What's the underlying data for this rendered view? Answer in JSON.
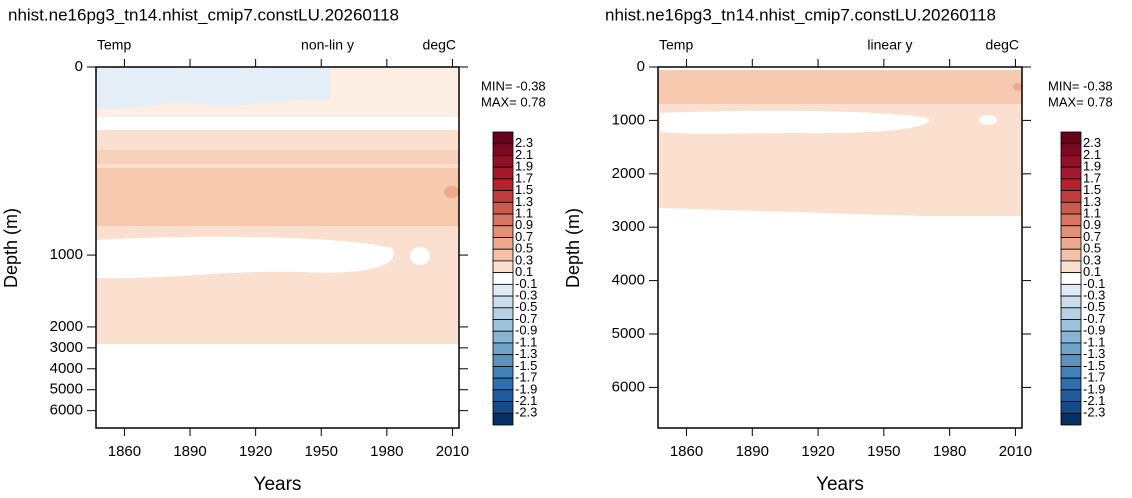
{
  "chart_data": [
    {
      "type": "contour",
      "title": "nhist.ne16pg3_tn14.nhist_cmip7.constLU.20260118",
      "left_label": "Temp",
      "center_label": "non-lin y",
      "right_label": "degC",
      "min_label": "MIN= -0.38",
      "max_label": "MAX=  0.78",
      "xlabel": "Years",
      "ylabel": "Depth (m)",
      "yscale": "nonlinear",
      "xlim": [
        1847,
        2013
      ],
      "xticks": [
        1860,
        1890,
        1920,
        1950,
        1980,
        2010
      ],
      "ylim": [
        6800,
        0
      ],
      "yticks": [
        0,
        1000,
        2000,
        3000,
        4000,
        5000,
        6000
      ],
      "colorbar_labels": [
        "2.3",
        "2.1",
        "1.9",
        "1.7",
        "1.5",
        "1.3",
        "1.1",
        "0.9",
        "0.7",
        "0.5",
        "0.3",
        "0.1",
        "-0.1",
        "-0.3",
        "-0.5",
        "-0.7",
        "-0.9",
        "-1.1",
        "-1.3",
        "-1.5",
        "-1.7",
        "-1.9",
        "-2.1",
        "-2.3"
      ],
      "colorbar_colors": [
        "#67001f",
        "#7a0a22",
        "#8e1326",
        "#a2192b",
        "#b2232f",
        "#c03d3e",
        "#cc5a4f",
        "#d87561",
        "#e39077",
        "#eeaa8d",
        "#f5c2a7",
        "#fbe0d0",
        "#ffffff",
        "#dfebf4",
        "#c9ddec",
        "#b3d0e4",
        "#9ec3dc",
        "#89b5d4",
        "#6fa4cb",
        "#5893c2",
        "#4281b8",
        "#2f6fac",
        "#215c9c",
        "#154a89",
        "#053061"
      ]
    },
    {
      "type": "contour",
      "title": "nhist.ne16pg3_tn14.nhist_cmip7.constLU.20260118",
      "left_label": "Temp",
      "center_label": "linear y",
      "right_label": "degC",
      "min_label": "MIN= -0.38",
      "max_label": "MAX=  0.78",
      "xlabel": "Years",
      "ylabel": "Depth (m)",
      "yscale": "linear",
      "xlim": [
        1847,
        2013
      ],
      "xticks": [
        1860,
        1890,
        1920,
        1950,
        1980,
        2010
      ],
      "ylim": [
        6760,
        0
      ],
      "yticks": [
        0,
        1000,
        2000,
        3000,
        4000,
        5000,
        6000
      ],
      "colorbar_labels": [
        "2.3",
        "2.1",
        "1.9",
        "1.7",
        "1.5",
        "1.3",
        "1.1",
        "0.9",
        "0.7",
        "0.5",
        "0.3",
        "0.1",
        "-0.1",
        "-0.3",
        "-0.5",
        "-0.7",
        "-0.9",
        "-1.1",
        "-1.3",
        "-1.5",
        "-1.7",
        "-1.9",
        "-2.1",
        "-2.3"
      ],
      "colorbar_colors": [
        "#67001f",
        "#7a0a22",
        "#8e1326",
        "#a2192b",
        "#b2232f",
        "#c03d3e",
        "#cc5a4f",
        "#d87561",
        "#e39077",
        "#eeaa8d",
        "#f5c2a7",
        "#fbe0d0",
        "#ffffff",
        "#dfebf4",
        "#c9ddec",
        "#b3d0e4",
        "#9ec3dc",
        "#89b5d4",
        "#6fa4cb",
        "#5893c2",
        "#4281b8",
        "#2f6fac",
        "#215c9c",
        "#154a89",
        "#053061"
      ]
    }
  ]
}
